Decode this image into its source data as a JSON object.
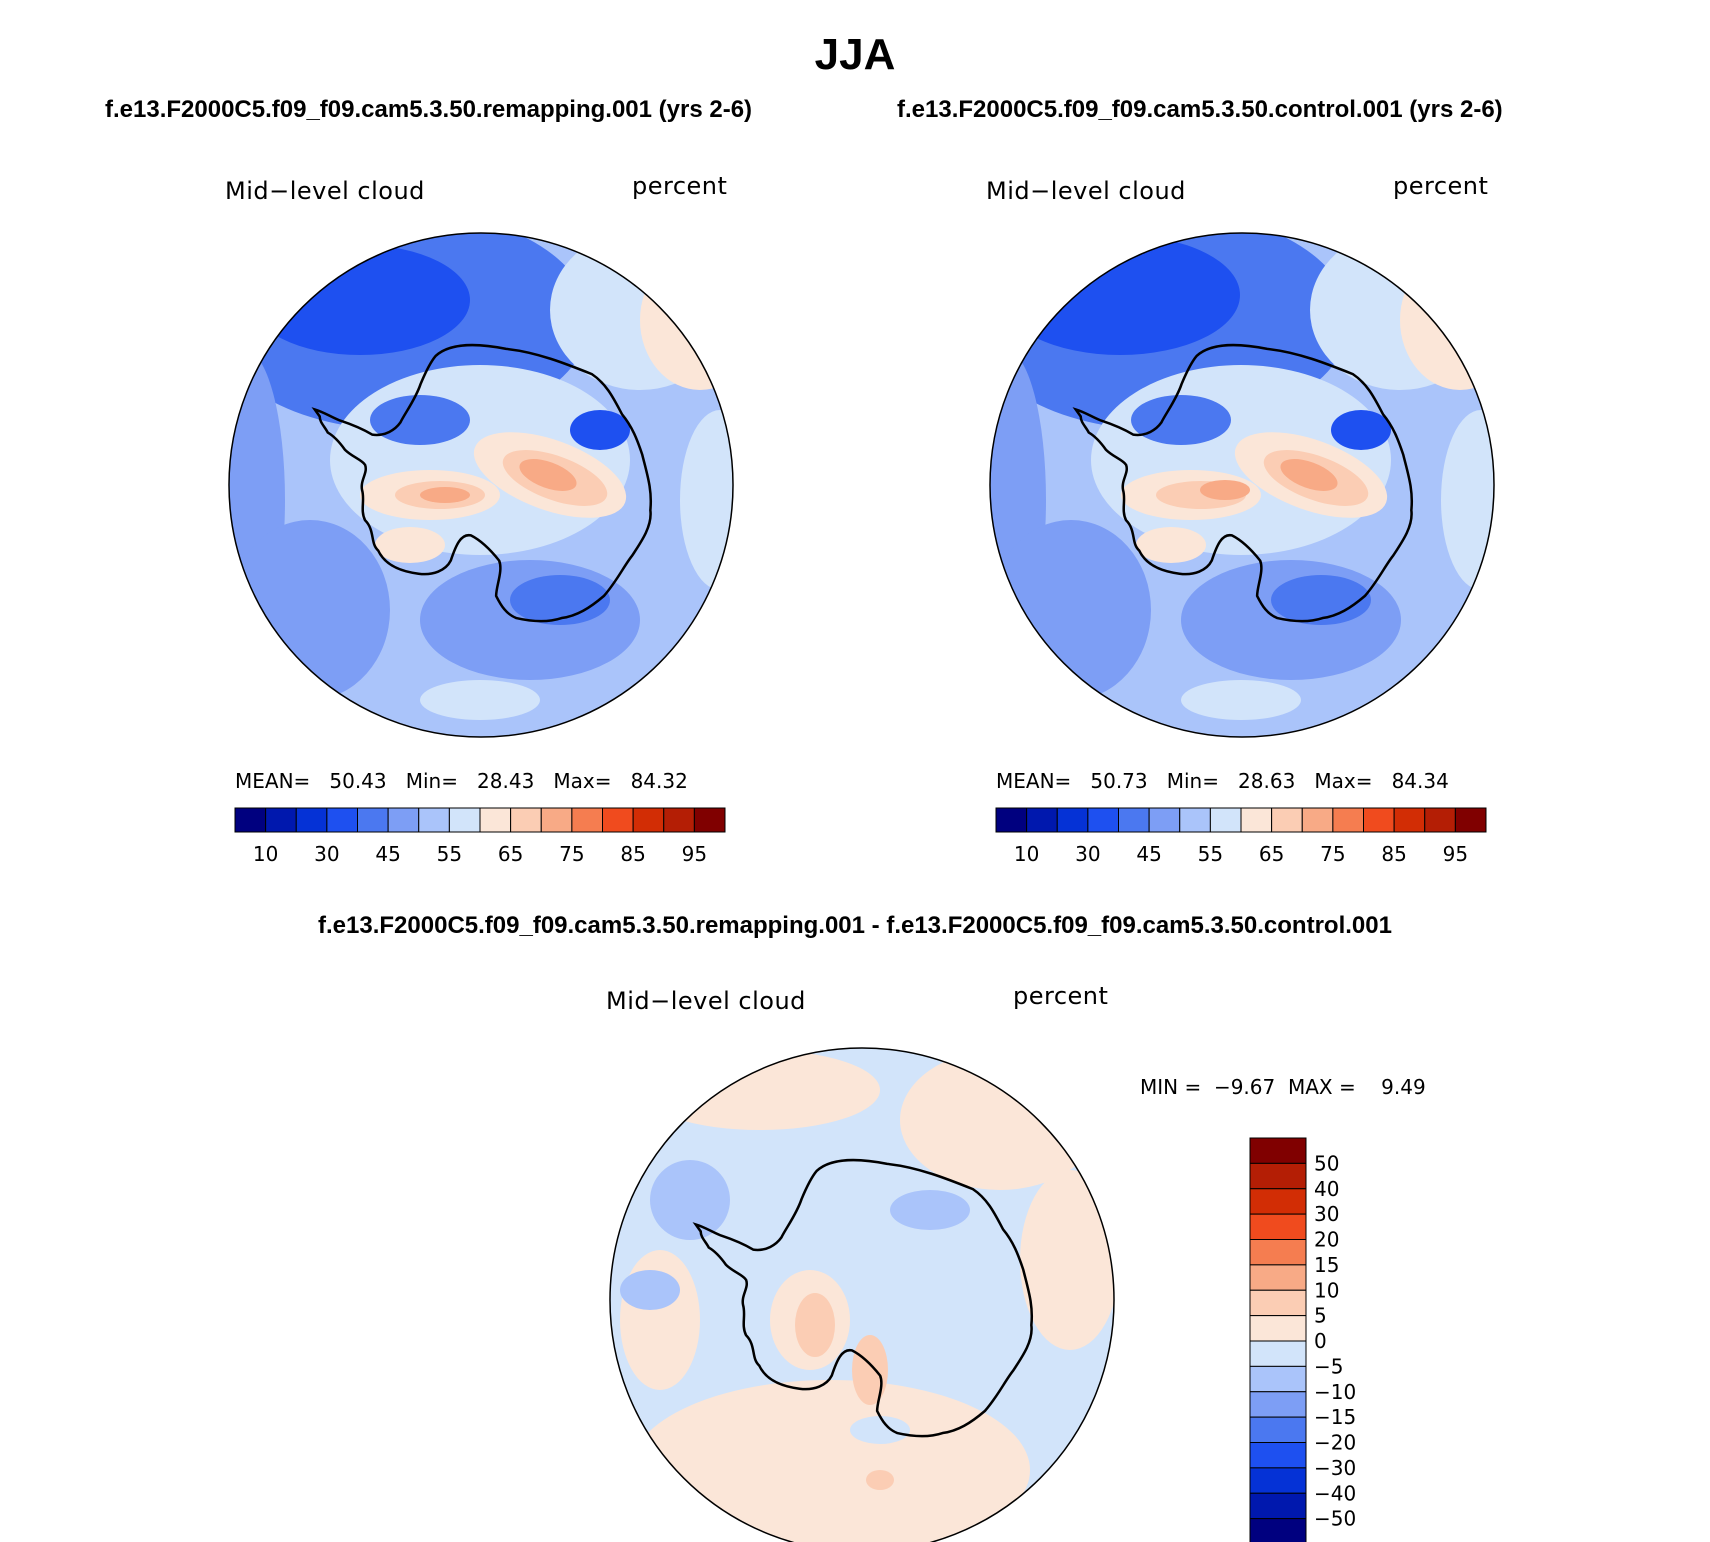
{
  "season_title": "JJA",
  "panels": {
    "left": {
      "case_title": "f.e13.F2000C5.f09_f09.cam5.3.50.remapping.001 (yrs 2-6)",
      "variable_label": "Mid−level cloud",
      "units_label": "percent",
      "mean_label": "MEAN=",
      "mean_value": "50.43",
      "min_label": "Min=",
      "min_value": "28.43",
      "max_label": "Max=",
      "max_value": "84.32"
    },
    "right": {
      "case_title": "f.e13.F2000C5.f09_f09.cam5.3.50.control.001 (yrs 2-6)",
      "variable_label": "Mid−level cloud",
      "units_label": "percent",
      "mean_label": "MEAN=",
      "mean_value": "50.73",
      "min_label": "Min=",
      "min_value": "28.63",
      "max_label": "Max=",
      "max_value": "84.34"
    },
    "diff": {
      "title": "f.e13.F2000C5.f09_f09.cam5.3.50.remapping.001 - f.e13.F2000C5.f09_f09.cam5.3.50.control.001",
      "variable_label": "Mid−level cloud",
      "units_label": "percent",
      "min_label": "MIN =",
      "min_value": "−9.67",
      "max_label": "MAX =",
      "max_value": "9.49"
    }
  },
  "colorbars": {
    "horizontal": {
      "colors": [
        "#00007f",
        "#0018ae",
        "#0532d6",
        "#1e50f0",
        "#4b78f0",
        "#7d9ef5",
        "#aac4fa",
        "#d2e4fa",
        "#fbe6d8",
        "#fbcdb4",
        "#f8aa86",
        "#f57d50",
        "#f04b1e",
        "#d22d05",
        "#b41e05",
        "#800000"
      ],
      "labels": [
        "10",
        "30",
        "45",
        "55",
        "65",
        "75",
        "85",
        "95"
      ]
    },
    "vertical": {
      "colors_top_to_bottom": [
        "#800000",
        "#b41e05",
        "#d22d05",
        "#f04b1e",
        "#f57d50",
        "#f8aa86",
        "#fbcdb4",
        "#fbe6d8",
        "#d2e4fa",
        "#aac4fa",
        "#7d9ef5",
        "#4b78f0",
        "#1e50f0",
        "#0532d6",
        "#0018ae",
        "#00007f"
      ],
      "labels": [
        "50",
        "40",
        "30",
        "20",
        "15",
        "10",
        "5",
        "0",
        "−5",
        "−10",
        "−15",
        "−20",
        "−30",
        "−40",
        "−50"
      ]
    }
  },
  "map_colors": {
    "ocean_mid": "#7d9ef5",
    "ocean_light": "#aac4fa",
    "ocean_pale": "#d2e4fa",
    "warm_pale": "#fbe6d8",
    "warm_light": "#fbcdb4",
    "warm_mid": "#f8aa86",
    "warm_strong": "#f57d50",
    "blue_dark": "#1e50f0",
    "blue_mid": "#4b78f0"
  }
}
